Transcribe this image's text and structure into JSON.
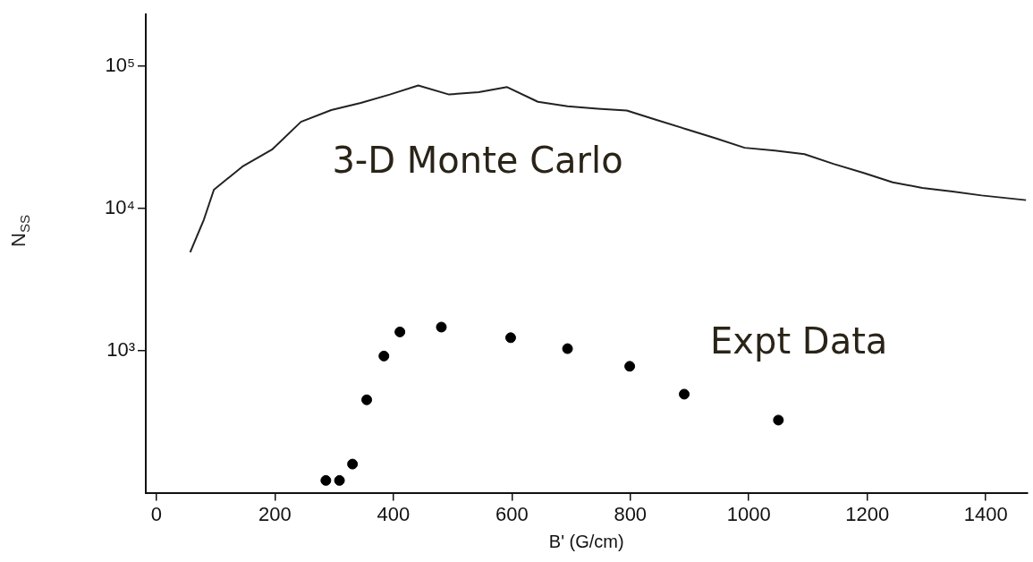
{
  "chart_data": {
    "type": "line",
    "xlabel": "B' (G/cm)",
    "ylabel": "N$_{SS}$",
    "log": "y",
    "grid": false,
    "legend": false,
    "xlim": [
      -18,
      1470
    ],
    "xticks": [
      0,
      200,
      400,
      600,
      800,
      1000,
      1200,
      1400
    ],
    "ylim": [
      100,
      230000
    ],
    "yticks": [
      {
        "value": 1000,
        "label": "10³"
      },
      {
        "value": 10000,
        "label": "10⁴"
      },
      {
        "value": 100000,
        "label": "10⁵"
      }
    ],
    "series": [
      {
        "name": "3-D Monte Carlo",
        "color": "#222222",
        "marker": "none",
        "line_style": "solid",
        "x": [
          57,
          80,
          97,
          145,
          195,
          244,
          295,
          345,
          394,
          442,
          494,
          544,
          592,
          644,
          694,
          745,
          794,
          843,
          894,
          944,
          993,
          1044,
          1094,
          1143,
          1194,
          1243,
          1293,
          1344,
          1393,
          1468
        ],
        "values": [
          4900,
          8300,
          13500,
          19600,
          25800,
          40500,
          49000,
          55000,
          63000,
          72900,
          63000,
          65500,
          71000,
          56000,
          52000,
          50000,
          48600,
          41900,
          36000,
          31000,
          26600,
          25400,
          24000,
          20500,
          17700,
          15200,
          13900,
          13100,
          12300,
          11400
        ]
      },
      {
        "name": "Expt Data",
        "type": "scatter",
        "color": "#000000",
        "marker": "circle",
        "x": [
          286,
          309,
          331,
          355,
          384,
          411,
          481,
          598,
          694,
          799,
          891,
          1050
        ],
        "values": [
          122,
          122,
          159,
          450,
          914,
          1350,
          1460,
          1230,
          1030,
          774,
          493,
          324
        ]
      }
    ]
  }
}
